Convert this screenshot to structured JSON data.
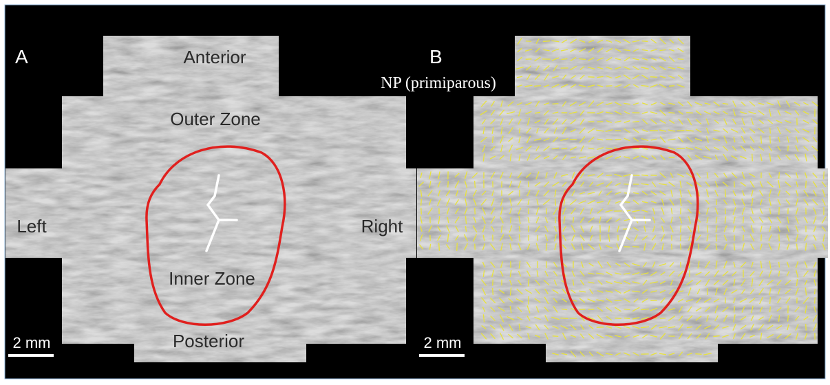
{
  "panels": [
    {
      "letter": "A",
      "labels": {
        "anterior": "Anterior",
        "outer_zone": "Outer Zone",
        "left": "Left",
        "right": "Right",
        "inner_zone": "Inner Zone",
        "posterior": "Posterior"
      },
      "scale_bar": "2 mm"
    },
    {
      "letter": "B",
      "subtitle": "NP (primiparous)",
      "scale_bar": "2 mm"
    }
  ]
}
